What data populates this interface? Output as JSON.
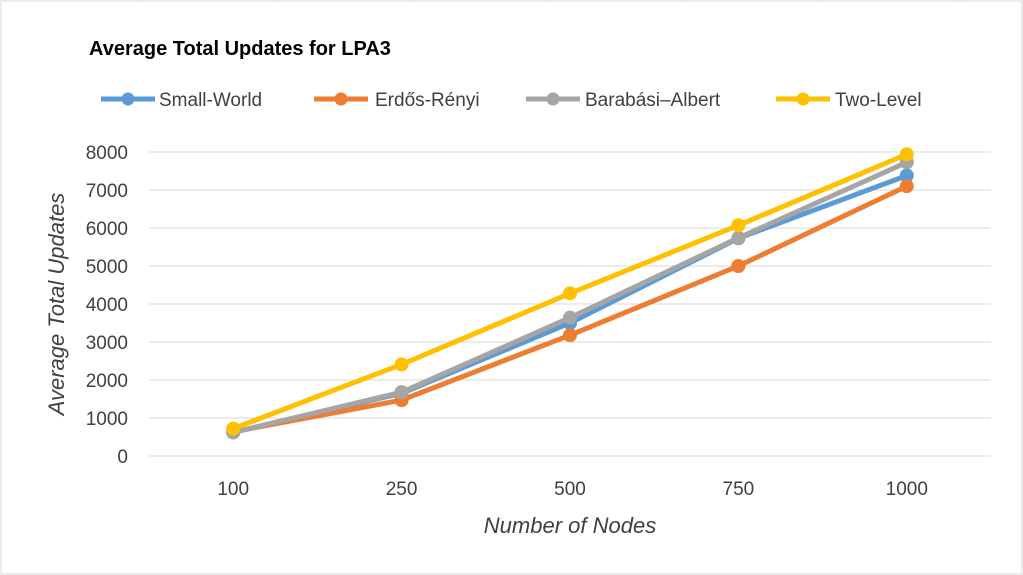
{
  "chart_data": {
    "type": "line",
    "title": "Average Total Updates for LPA3",
    "xlabel": "Number of Nodes",
    "ylabel": "Average Total Updates",
    "categories": [
      "100",
      "250",
      "500",
      "750",
      "1000"
    ],
    "ylim": [
      0,
      8000
    ],
    "yticks": [
      "0",
      "1000",
      "2000",
      "3000",
      "4000",
      "5000",
      "6000",
      "7000",
      "8000"
    ],
    "grid": true,
    "legend_position": "top",
    "series": [
      {
        "name": "Small-World",
        "color": "#5b9bd5",
        "values": [
          620,
          1650,
          3500,
          5730,
          7380
        ]
      },
      {
        "name": "Erdős-Rényi",
        "color": "#ed7d31",
        "values": [
          640,
          1470,
          3180,
          5000,
          7100
        ]
      },
      {
        "name": "Barabási–Albert",
        "color": "#a5a5a5",
        "values": [
          620,
          1680,
          3640,
          5740,
          7730
        ]
      },
      {
        "name": "Two-Level",
        "color": "#ffc000",
        "values": [
          720,
          2410,
          4280,
          6070,
          7940
        ]
      }
    ]
  }
}
